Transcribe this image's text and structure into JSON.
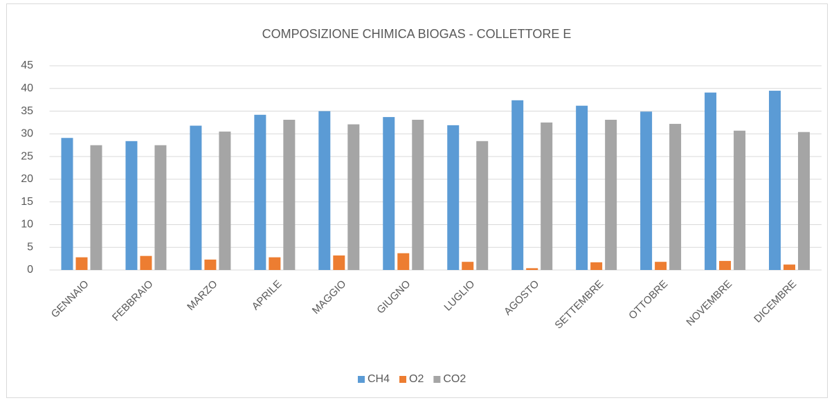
{
  "chart_data": {
    "type": "bar",
    "title": "COMPOSIZIONE CHIMICA BIOGAS - COLLETTORE E",
    "categories": [
      "GENNAIO",
      "FEBBRAIO",
      "MARZO",
      "APRILE",
      "MAGGIO",
      "GIUGNO",
      "LUGLIO",
      "AGOSTO",
      "SETTEMBRE",
      "OTTOBRE",
      "NOVEMBRE",
      "DICEMBRE"
    ],
    "series": [
      {
        "name": "CH4",
        "color": "#5b9bd5",
        "values": [
          29.1,
          28.4,
          31.8,
          34.2,
          35.0,
          33.7,
          31.9,
          37.4,
          36.2,
          34.9,
          39.1,
          39.5
        ]
      },
      {
        "name": "O2",
        "color": "#ed7d31",
        "values": [
          2.8,
          3.1,
          2.3,
          2.8,
          3.2,
          3.7,
          1.8,
          0.4,
          1.7,
          1.8,
          2.0,
          1.2
        ]
      },
      {
        "name": "CO2",
        "color": "#a5a5a5",
        "values": [
          27.5,
          27.5,
          30.5,
          33.1,
          32.1,
          33.1,
          28.4,
          32.5,
          33.1,
          32.2,
          30.7,
          30.4
        ]
      }
    ],
    "ylim": [
      0,
      45
    ],
    "yticks": [
      0,
      5,
      10,
      15,
      20,
      25,
      30,
      35,
      40,
      45
    ],
    "grid": true,
    "legend": "bottom"
  }
}
